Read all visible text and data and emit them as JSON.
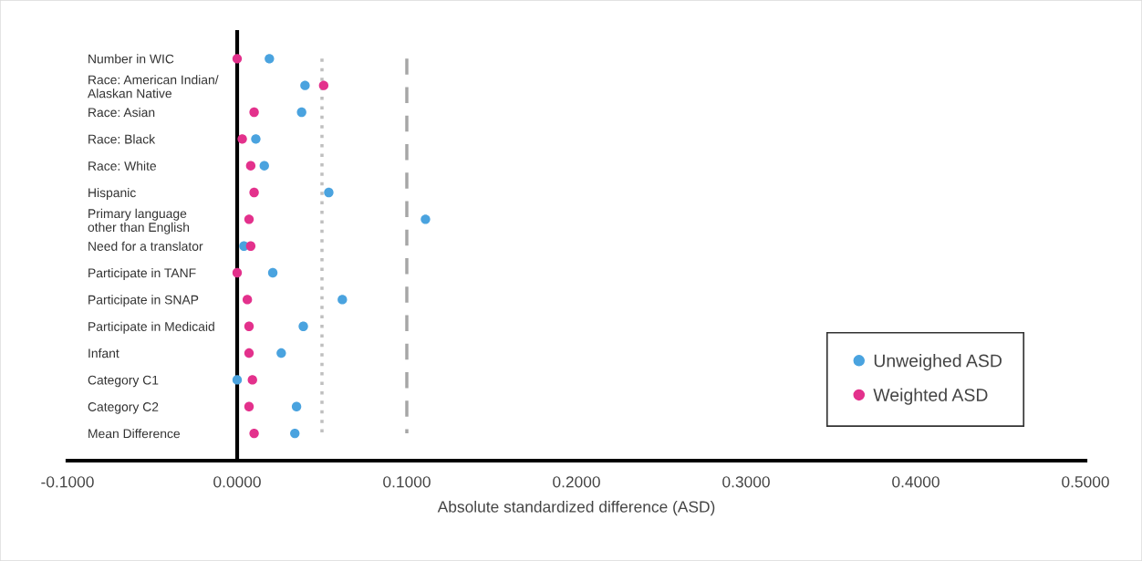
{
  "chart_data": {
    "type": "scatter",
    "orientation": "horizontal",
    "categories": [
      "Number in WIC",
      "Race: American Indian/\nAlaskan Native",
      "Race: Asian",
      "Race: Black",
      "Race: White",
      "Hispanic",
      "Primary language\nother than English",
      "Need for a translator",
      "Participate in TANF",
      "Participate in SNAP",
      "Participate in Medicaid",
      "Infant",
      "Category C1",
      "Category C2",
      "Mean Difference"
    ],
    "series": [
      {
        "name": "Unweighed ASD",
        "color": "#4aa3df",
        "values": [
          0.019,
          0.04,
          0.038,
          0.011,
          0.016,
          0.054,
          0.111,
          0.004,
          0.021,
          0.062,
          0.039,
          0.026,
          0.0,
          0.035,
          0.034
        ]
      },
      {
        "name": "Weighted ASD",
        "color": "#e3318c",
        "values": [
          0.0,
          0.051,
          0.01,
          0.003,
          0.008,
          0.01,
          0.007,
          0.008,
          0.0,
          0.006,
          0.007,
          0.007,
          0.009,
          0.007,
          0.01
        ]
      }
    ],
    "xlabel": "Absolute standardized difference (ASD)",
    "xlim": [
      -0.1,
      0.5
    ],
    "xticks": [
      {
        "value": -0.1,
        "label": "-0.1000"
      },
      {
        "value": 0,
        "label": "0.0000"
      },
      {
        "value": 0.1,
        "label": "0.1000"
      },
      {
        "value": 0.2,
        "label": "0.2000"
      },
      {
        "value": 0.3,
        "label": "0.3000"
      },
      {
        "value": 0.4,
        "label": "0.4000"
      },
      {
        "value": 0.5,
        "label": "0.5000"
      }
    ],
    "ref_lines": [
      {
        "axis": "x",
        "value": 0.05,
        "color": "#bfbfbf",
        "line_style": "dotted"
      },
      {
        "axis": "x",
        "value": 0.1,
        "color": "#a6a6a6",
        "line_style": "dashed"
      }
    ],
    "marker": "circle",
    "grid": false,
    "legend": "bottom right"
  }
}
